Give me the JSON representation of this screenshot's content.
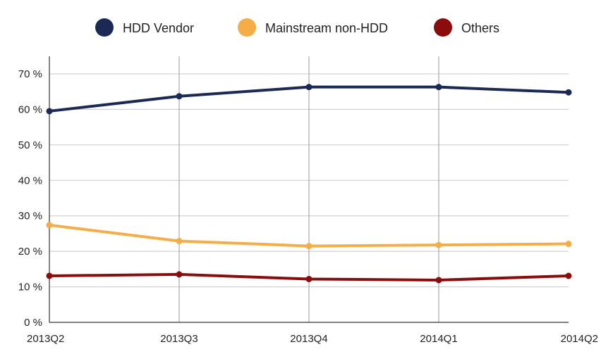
{
  "chart_data": {
    "type": "line",
    "categories": [
      "2013Q2",
      "2013Q3",
      "2013Q4",
      "2014Q1",
      "2014Q2"
    ],
    "series": [
      {
        "name": "HDD Vendor",
        "color": "#1b2a55",
        "values": [
          59.5,
          63.7,
          66.3,
          66.3,
          64.8
        ]
      },
      {
        "name": "Mainstream non-HDD",
        "color": "#f5ae47",
        "values": [
          27.4,
          22.9,
          21.5,
          21.8,
          22.1
        ]
      },
      {
        "name": "Others",
        "color": "#8b0c0c",
        "values": [
          13.1,
          13.5,
          12.2,
          11.9,
          13.1
        ]
      }
    ],
    "yticks": [
      "0 %",
      "10 %",
      "20 %",
      "30 %",
      "40 %",
      "50 %",
      "60 %",
      "70 %"
    ],
    "ylim": [
      0,
      70
    ],
    "grid": true,
    "legend": "top-center"
  }
}
